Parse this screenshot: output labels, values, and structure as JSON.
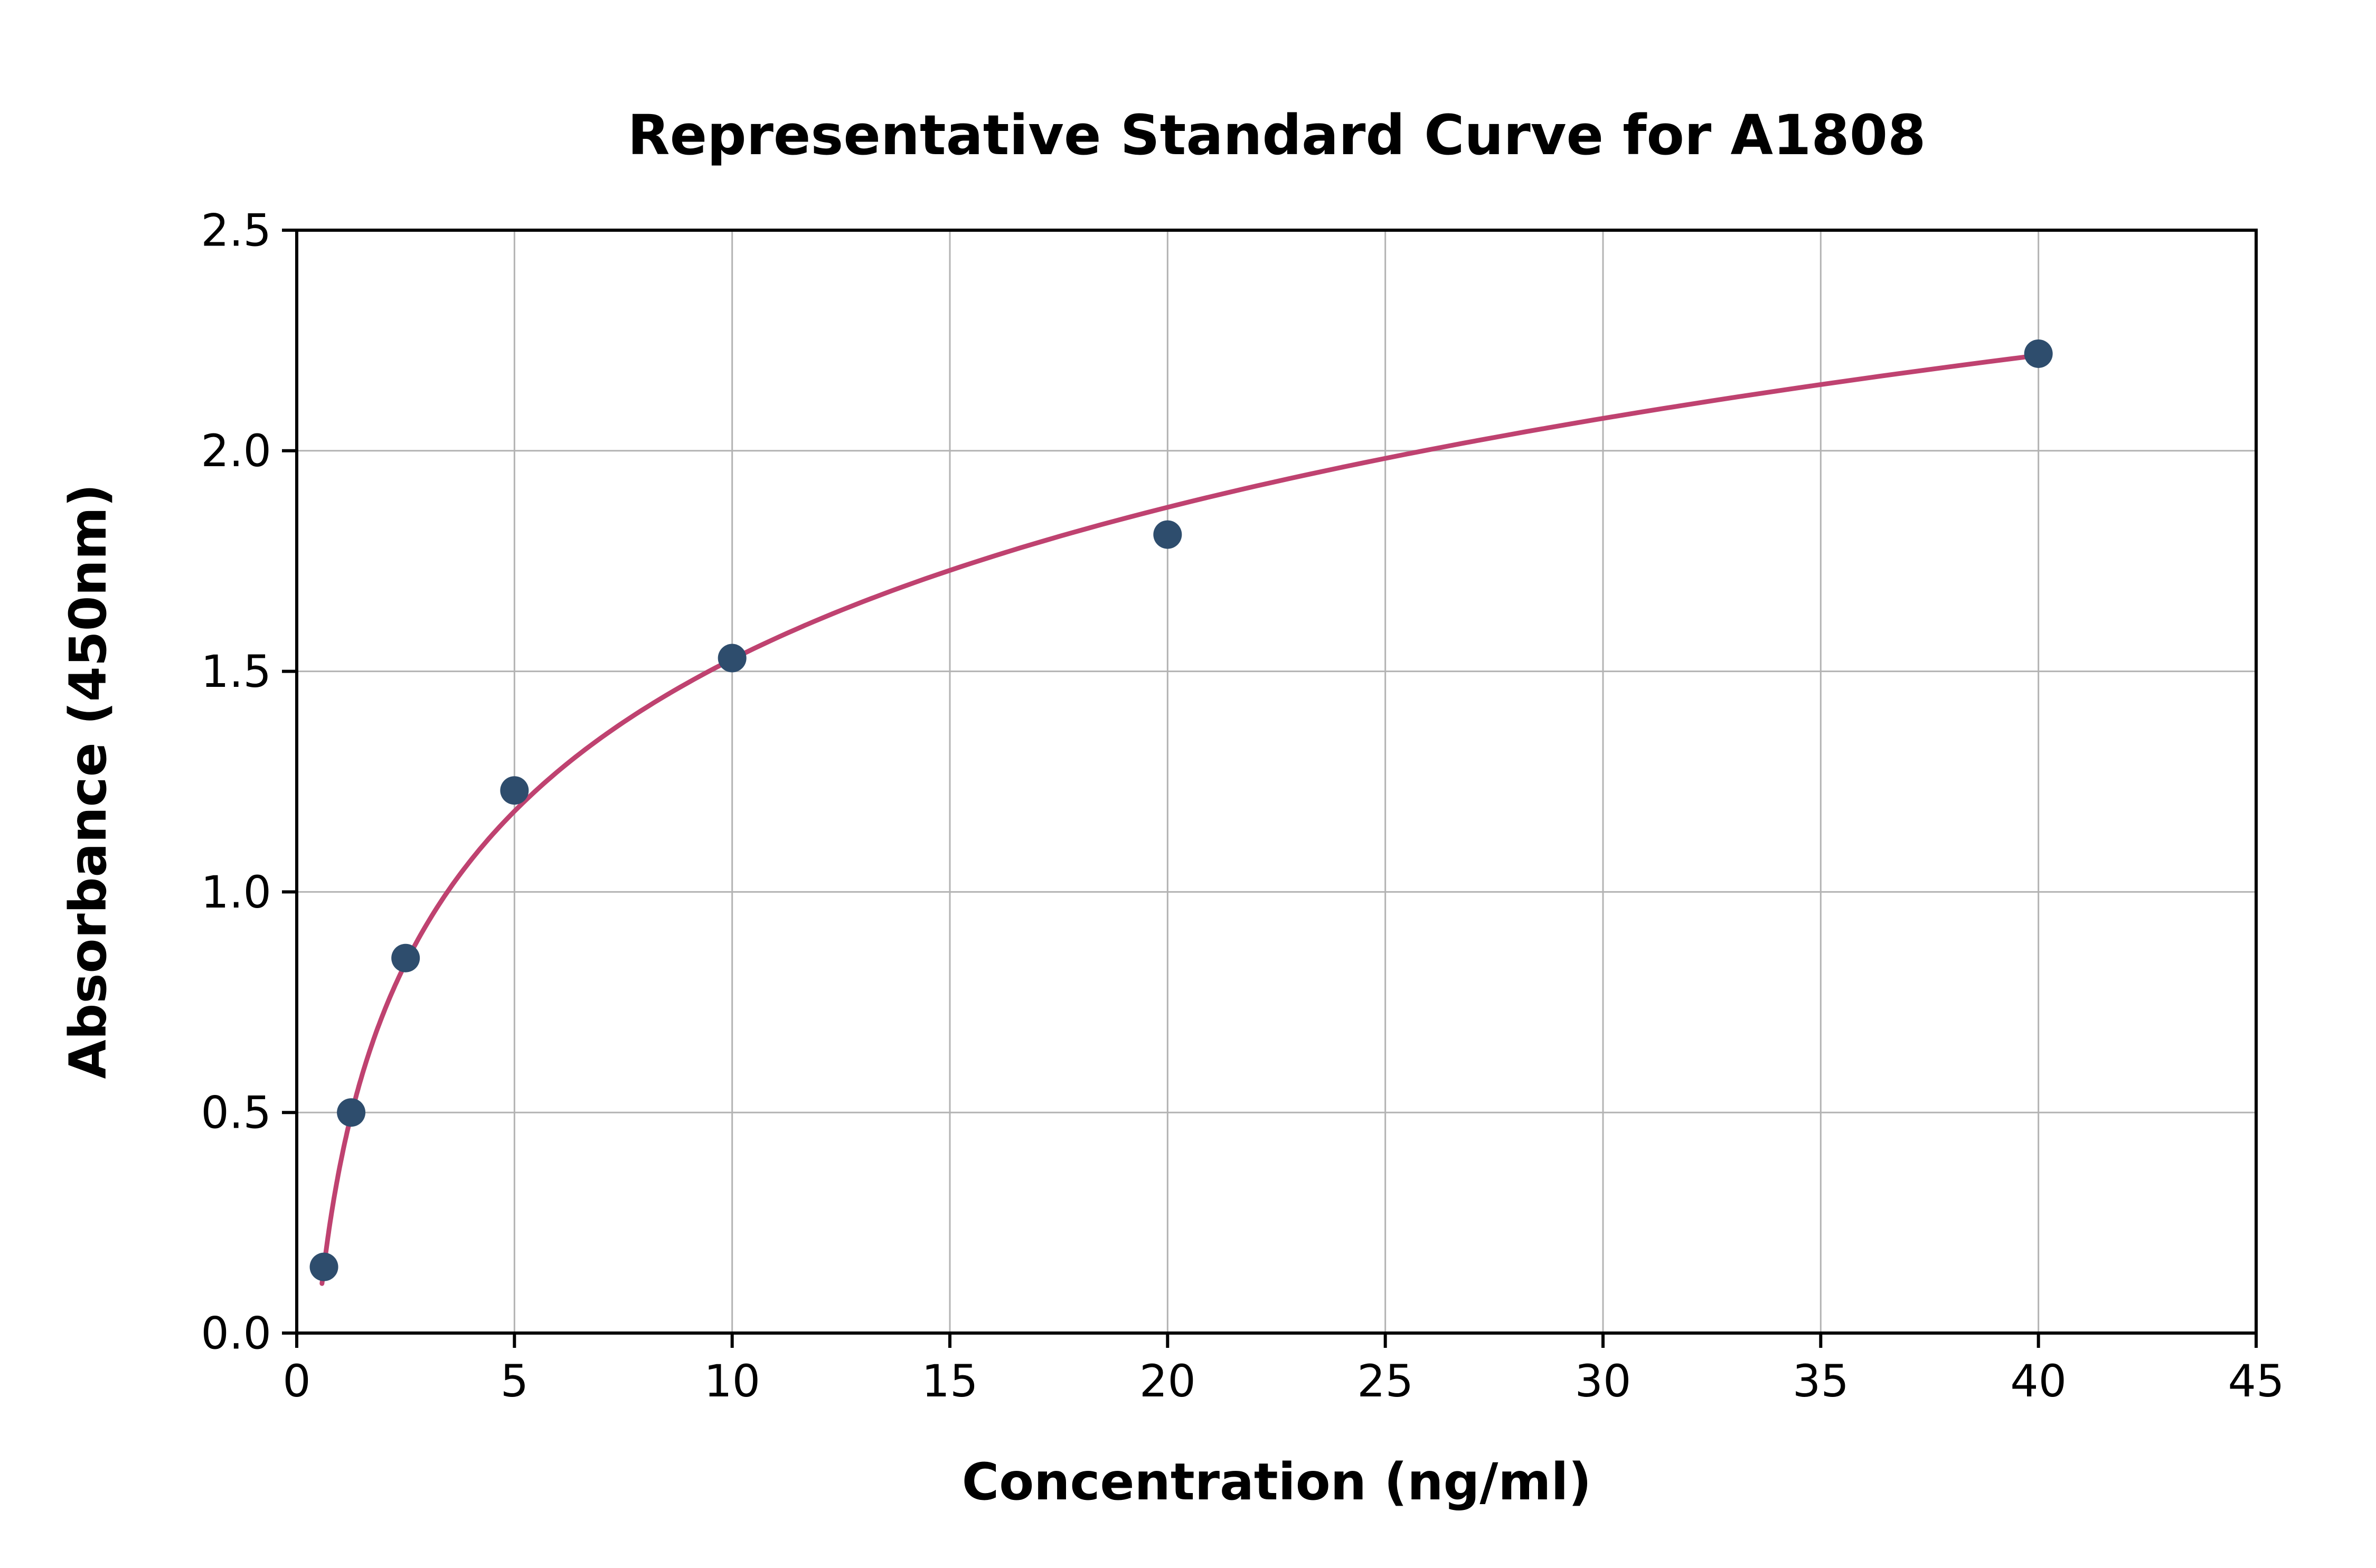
{
  "chart_data": {
    "type": "scatter",
    "title": "Representative Standard Curve for A1808",
    "xlabel": "Concentration (ng/ml)",
    "ylabel": "Absorbance (450nm)",
    "xlim": [
      0,
      45
    ],
    "ylim": [
      0,
      2.5
    ],
    "xticks": [
      0,
      5,
      10,
      15,
      20,
      25,
      30,
      35,
      40,
      45
    ],
    "xtick_labels": [
      "0",
      "5",
      "10",
      "15",
      "20",
      "25",
      "30",
      "35",
      "40",
      "45"
    ],
    "yticks": [
      0,
      0.5,
      1.0,
      1.5,
      2.0,
      2.5
    ],
    "ytick_labels": [
      "0.0",
      "0.5",
      "1.0",
      "1.5",
      "2.0",
      "2.5"
    ],
    "grid": true,
    "legend": "none",
    "points": {
      "x": [
        0.625,
        1.25,
        2.5,
        5,
        10,
        20,
        40
      ],
      "y": [
        0.15,
        0.5,
        0.85,
        1.23,
        1.53,
        1.81,
        2.22
      ]
    },
    "fit_curve": {
      "type": "logarithmic",
      "equation": "y = a + b*ln(x)",
      "a": 0.383,
      "b": 0.497,
      "x_start": 0.58,
      "x_end": 40.2
    },
    "colors": {
      "point": "#2e4d6d",
      "curve": "#bf4270",
      "grid": "#b3b3b3",
      "axis": "#000000",
      "background": "#ffffff"
    }
  }
}
